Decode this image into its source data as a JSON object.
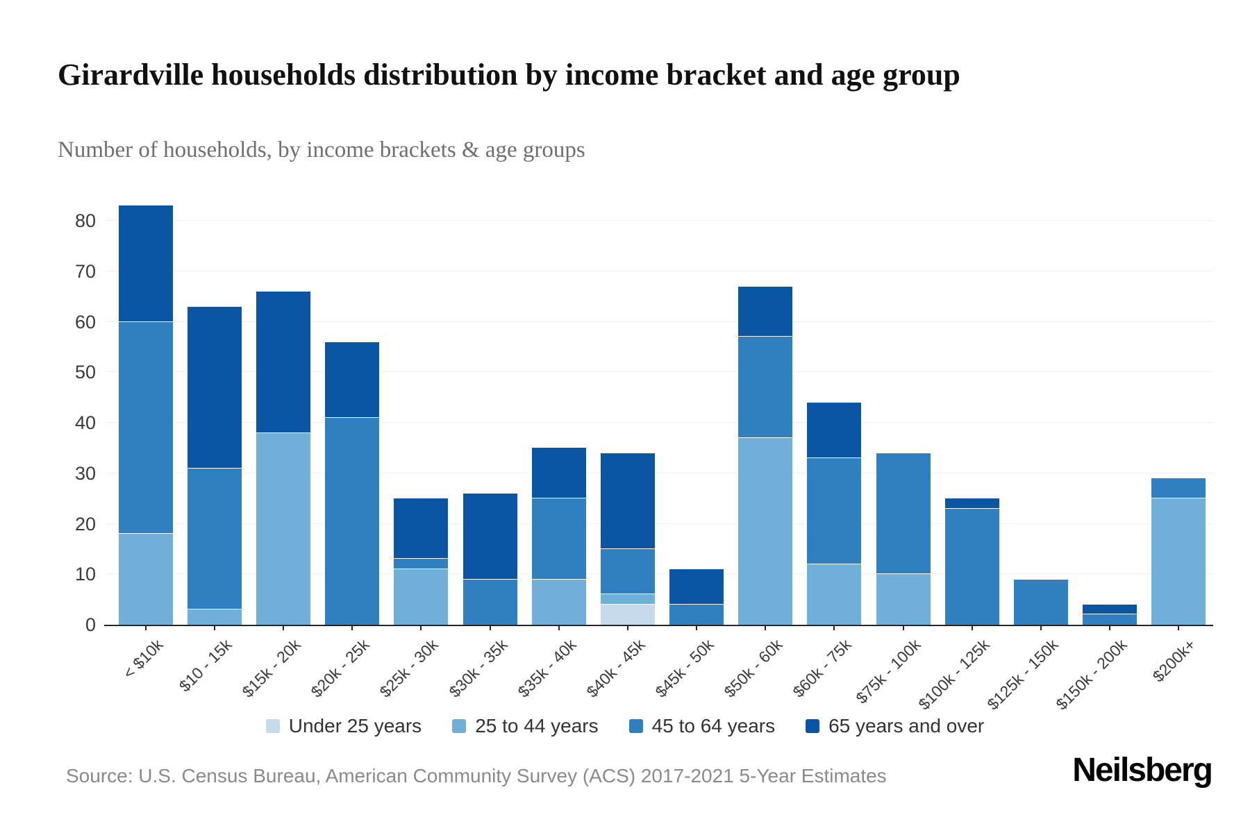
{
  "header": {
    "title": "Girardville households distribution by income bracket and age group",
    "subtitle": "Number of households, by income brackets & age groups"
  },
  "chart_data": {
    "type": "bar",
    "stacked": true,
    "title": "Girardville households distribution by income bracket and age group",
    "subtitle": "Number of households, by income brackets & age groups",
    "categories": [
      "< $10k",
      "$10 - 15k",
      "$15k - 20k",
      "$20k - 25k",
      "$25k - 30k",
      "$30k - 35k",
      "$35k - 40k",
      "$40k - 45k",
      "$45k - 50k",
      "$50k - 60k",
      "$60k - 75k",
      "$75k - 100k",
      "$100k - 125k",
      "$125k - 150k",
      "$150k - 200k",
      "$200k+"
    ],
    "series": [
      {
        "name": "Under 25 years",
        "color": "#c5daeb",
        "values": [
          0,
          0,
          0,
          0,
          0,
          0,
          0,
          4,
          0,
          0,
          0,
          0,
          0,
          0,
          0,
          0
        ]
      },
      {
        "name": "25 to 44 years",
        "color": "#6fafd8",
        "values": [
          18,
          3,
          38,
          0,
          11,
          0,
          9,
          2,
          0,
          37,
          12,
          10,
          0,
          0,
          0,
          25
        ]
      },
      {
        "name": "45 to 64 years",
        "color": "#2f80c0",
        "values": [
          42,
          28,
          0,
          41,
          2,
          9,
          16,
          9,
          4,
          20,
          21,
          24,
          23,
          9,
          2,
          4
        ]
      },
      {
        "name": "65 years and over",
        "color": "#0b56a4",
        "values": [
          23,
          32,
          28,
          15,
          12,
          17,
          10,
          19,
          7,
          10,
          11,
          0,
          2,
          0,
          2,
          0
        ]
      }
    ],
    "totals": [
      83,
      63,
      66,
      56,
      25,
      26,
      35,
      34,
      11,
      67,
      44,
      34,
      25,
      9,
      4,
      29
    ],
    "xlabel": "",
    "ylabel": "",
    "ylim": [
      0,
      88
    ],
    "yticks": [
      0,
      10,
      20,
      30,
      40,
      50,
      60,
      70,
      80
    ],
    "grid": true,
    "legend_position": "bottom"
  },
  "footer": {
    "source": "Source: U.S. Census Bureau, American Community Survey (ACS) 2017-2021 5-Year Estimates",
    "brand": "Neilsberg"
  }
}
